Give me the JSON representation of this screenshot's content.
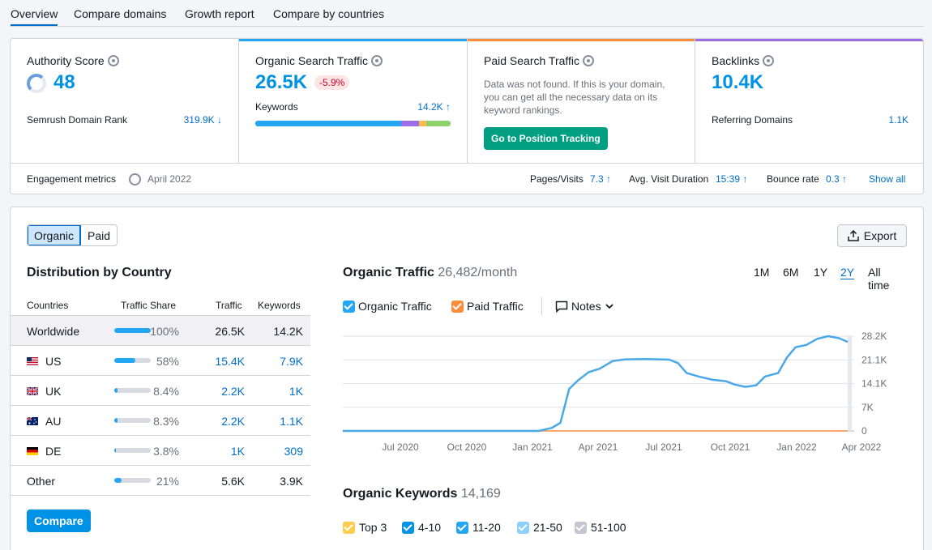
{
  "nav": {
    "tabs": [
      {
        "label": "Overview"
      },
      {
        "label": "Compare domains"
      },
      {
        "label": "Growth report"
      },
      {
        "label": "Compare by countries"
      }
    ]
  },
  "summary": {
    "authority": {
      "title": "Authority Score",
      "value": "48",
      "rank_label": "Semrush Domain Rank",
      "rank_value": "319.9K ↓"
    },
    "organic": {
      "title": "Organic Search Traffic",
      "value": "26.5K",
      "change": "-5.9%",
      "kw_label": "Keywords",
      "kw_value": "14.2K ↑"
    },
    "paid": {
      "title": "Paid Search Traffic",
      "message": "Data was not found. If this is your domain, you can get all the necessary data on its keyword rankings.",
      "button": "Go to Position Tracking"
    },
    "backlinks": {
      "title": "Backlinks",
      "value": "10.4K",
      "ref_label": "Referring Domains",
      "ref_value": "1.1K"
    },
    "engagement": {
      "label": "Engagement metrics",
      "date": "April 2022",
      "pages_label": "Pages/Visits",
      "pages_value": "7.3 ↑",
      "duration_label": "Avg. Visit Duration",
      "duration_value": "15:39 ↑",
      "bounce_label": "Bounce rate",
      "bounce_value": "0.3 ↑",
      "show_all": "Show all"
    },
    "colors": {
      "organic_bar": "#23a7f2",
      "paid_bar": "#ff8c3a",
      "backlinks_bar": "#9b6ee6"
    }
  },
  "main": {
    "toggle": {
      "organic": "Organic",
      "paid": "Paid"
    },
    "export": "Export",
    "distribution": {
      "title": "Distribution by Country",
      "headers": {
        "country": "Countries",
        "share": "Traffic Share",
        "traffic": "Traffic",
        "keywords": "Keywords"
      },
      "rows": [
        {
          "country": "Worldwide",
          "share": "100%",
          "share_frac": 1.0,
          "traffic": "26.5K",
          "keywords": "14.2K"
        },
        {
          "country": "US",
          "share": "58%",
          "share_frac": 0.58,
          "traffic": "15.4K",
          "keywords": "7.9K"
        },
        {
          "country": "UK",
          "share": "8.4%",
          "share_frac": 0.084,
          "traffic": "2.2K",
          "keywords": "1K"
        },
        {
          "country": "AU",
          "share": "8.3%",
          "share_frac": 0.083,
          "traffic": "2.2K",
          "keywords": "1.1K"
        },
        {
          "country": "DE",
          "share": "3.8%",
          "share_frac": 0.038,
          "traffic": "1K",
          "keywords": "309"
        },
        {
          "country": "Other",
          "share": "21%",
          "share_frac": 0.21,
          "traffic": "5.6K",
          "keywords": "3.9K"
        }
      ],
      "compare": "Compare"
    },
    "organic_traffic": {
      "title": "Organic Traffic",
      "value": "26,482/month",
      "ranges": [
        "1M",
        "6M",
        "1Y",
        "2Y",
        "All time"
      ],
      "active_range": "2Y",
      "legend": {
        "organic": "Organic Traffic",
        "paid": "Paid Traffic",
        "notes": "Notes"
      }
    },
    "organic_keywords": {
      "title": "Organic Keywords",
      "value": "14,169",
      "legend": [
        "Top 3",
        "4-10",
        "11-20",
        "21-50",
        "51-100"
      ],
      "legend_colors": [
        "#ffcc4d",
        "#0092e4",
        "#23a7f2",
        "#8cd0fb",
        "#c4c7cf"
      ]
    }
  },
  "chart_data": {
    "type": "line",
    "x": [
      "Jul 2020",
      "Oct 2020",
      "Jan 2021",
      "Apr 2021",
      "Jul 2021",
      "Oct 2021",
      "Jan 2022",
      "Apr 2022"
    ],
    "x_ticks": [
      "Jul 2020",
      "Oct 2020",
      "Jan 2021",
      "Apr 2021",
      "Jul 2021",
      "Oct 2021",
      "Jan 2022",
      "Apr 2022"
    ],
    "y_ticks": [
      "28.2K",
      "21.1K",
      "14.1K",
      "7K",
      "0"
    ],
    "ylim": [
      0,
      28200
    ],
    "series": [
      {
        "name": "Organic Traffic",
        "color": "#4aa8e8",
        "points": [
          [
            0,
            0
          ],
          [
            1,
            0
          ],
          [
            2,
            0
          ],
          [
            3,
            0
          ],
          [
            4,
            0
          ],
          [
            5,
            0
          ],
          [
            6,
            0
          ],
          [
            7,
            0
          ],
          [
            8,
            0
          ],
          [
            9,
            0
          ],
          [
            9.6,
            900
          ],
          [
            10,
            2400
          ],
          [
            10.4,
            12500
          ],
          [
            10.8,
            15000
          ],
          [
            11.3,
            17500
          ],
          [
            11.8,
            18500
          ],
          [
            12.4,
            20800
          ],
          [
            13,
            21300
          ],
          [
            14,
            21400
          ],
          [
            15,
            21200
          ],
          [
            15.4,
            20200
          ],
          [
            15.8,
            17200
          ],
          [
            16.4,
            16100
          ],
          [
            17,
            15200
          ],
          [
            17.6,
            14800
          ],
          [
            18,
            13800
          ],
          [
            18.5,
            13100
          ],
          [
            19,
            13600
          ],
          [
            19.4,
            16200
          ],
          [
            20,
            17200
          ],
          [
            20.4,
            21800
          ],
          [
            20.8,
            24900
          ],
          [
            21.3,
            25600
          ],
          [
            21.8,
            27400
          ],
          [
            22.3,
            28200
          ],
          [
            22.8,
            27600
          ],
          [
            23.2,
            26500
          ]
        ]
      },
      {
        "name": "Paid Traffic",
        "color": "#ff8c3a",
        "points": [
          [
            0,
            0
          ],
          [
            23.2,
            0
          ]
        ]
      }
    ]
  }
}
